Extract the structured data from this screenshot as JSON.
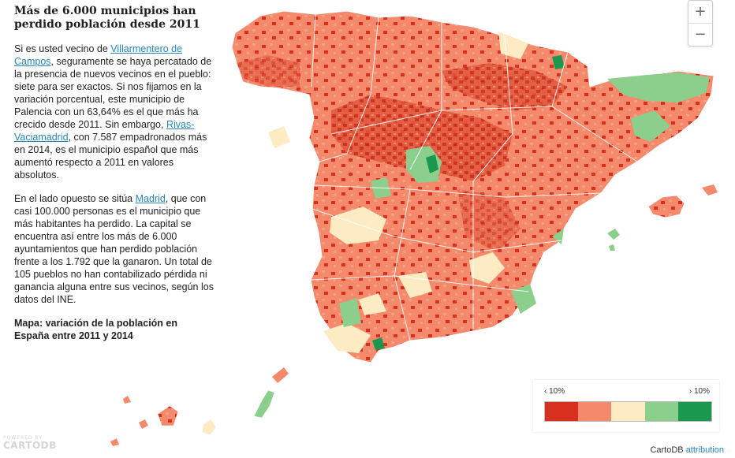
{
  "article": {
    "title": "Más de 6.000 municipios han perdido población desde 2011",
    "p1_a": "Si es usted vecino de ",
    "p1_link1": "Villarmentero de Campos",
    "p1_b": ", seguramente se haya percatado de la presencia de nuevos vecinos en el pueblo: siete para ser exactos. Si nos fijamos en la variación porcentual, este municipio de Palencia con un 63,64% es el que más ha crecido desde 2011. Sin embargo, ",
    "p1_link2": "Rivas-Vaciamadrid",
    "p1_c": ", con 7.587 empadronados más en 2014, es el municipio español que más aumentó respecto a 2011 en valores absolutos.",
    "p2_a": "En el lado opuesto se sitúa ",
    "p2_link": "Madrid",
    "p2_b": ", que con casi 100.000 personas es el municipio que más habitantes ha perdido. La capital se encuentra así entre los más de 6.000 ayuntamientos que han perdido población frente a los 1.792 que la ganaron. Un total de 105 pueblos no han contabilizado pérdida ni ganancia alguna entre sus vecinos, según los datos del INE.",
    "caption": "Mapa: variación de la población en España entre 2011 y 2014"
  },
  "zoom": {
    "in_label": "+",
    "out_label": "−"
  },
  "legend": {
    "min_label": "‹ 10%",
    "max_label": "› 10%",
    "colors": [
      "#d7301f",
      "#f4896b",
      "#fdebc3",
      "#8ccf8c",
      "#1a9850"
    ]
  },
  "attribution": {
    "text": "CartoDB ",
    "link": "attribution"
  },
  "branding": {
    "powered": "POWERED BY",
    "name": "CARTODB"
  },
  "colors": {
    "land_base": "#f4896b",
    "decline_strong": "#d7301f",
    "stable": "#fdebc3",
    "growth": "#8ccf8c",
    "growth_strong": "#1a9850",
    "link": "#2a86b7"
  }
}
